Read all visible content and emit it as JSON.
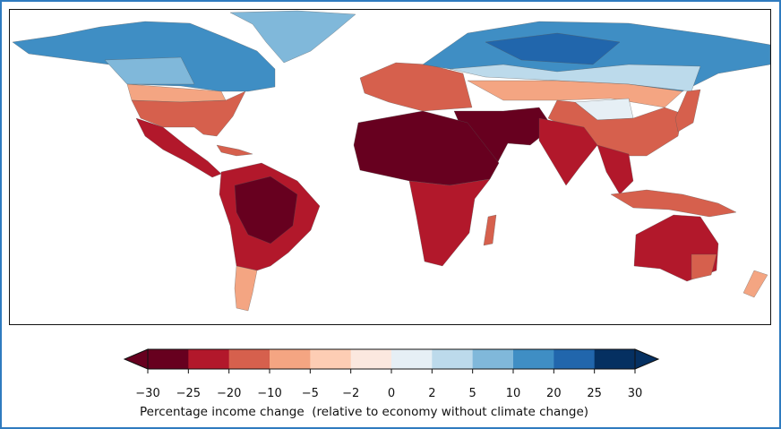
{
  "colorbar": {
    "label": "Percentage income change  (relative to economy without climate change)",
    "ticks": [
      "−30",
      "−25",
      "−20",
      "−10",
      "−5",
      "−2",
      "0",
      "2",
      "5",
      "10",
      "20",
      "25",
      "30"
    ],
    "colors": [
      "#67001f",
      "#b2182b",
      "#d6604d",
      "#f4a582",
      "#fdcdb4",
      "#fbe8df",
      "#e6eff5",
      "#bcdaeb",
      "#80b8da",
      "#3f8ec4",
      "#2166ac",
      "#053061"
    ],
    "extend": "both"
  }
}
